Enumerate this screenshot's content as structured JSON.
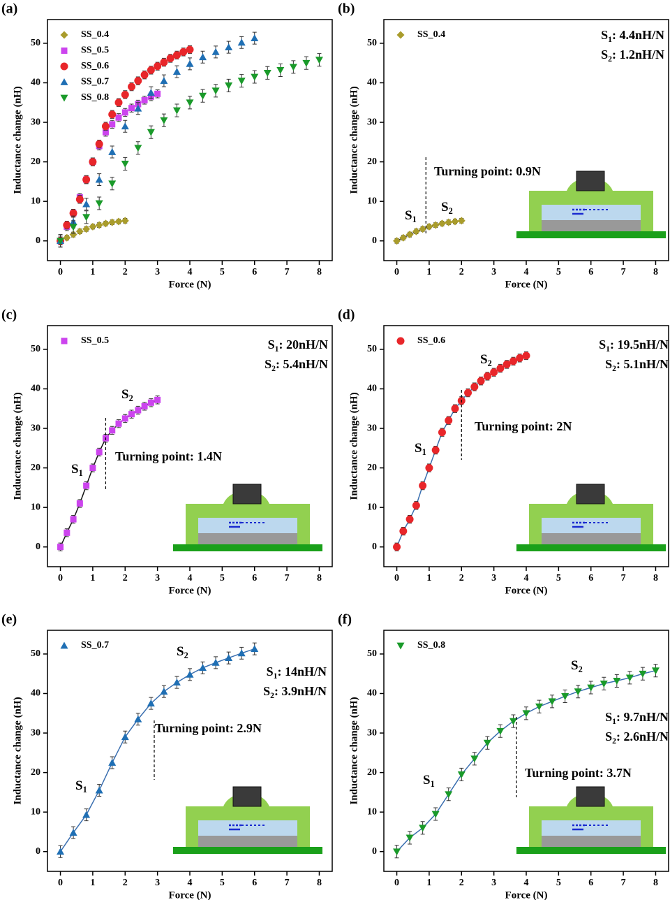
{
  "chart_data": [
    {
      "type": "scatter",
      "panel_label": "(a)",
      "xlabel": "Force (N)",
      "ylabel": "Inductance change (nH)",
      "xlim": [
        -0.4,
        8.4
      ],
      "ylim": [
        -5,
        56
      ],
      "xticks": [
        0,
        1,
        2,
        3,
        4,
        5,
        6,
        7,
        8
      ],
      "yticks": [
        0,
        10,
        20,
        30,
        40,
        50
      ],
      "series": [
        {
          "name": "SS_0.4",
          "marker": "diamond",
          "color": "#a99c2c",
          "error": 0.6,
          "x": [
            0,
            0.2,
            0.4,
            0.6,
            0.8,
            1,
            1.2,
            1.4,
            1.6,
            1.8,
            2
          ],
          "values": [
            0,
            0.8,
            1.6,
            2.4,
            3.0,
            3.6,
            4.0,
            4.4,
            4.7,
            4.9,
            5.1
          ]
        },
        {
          "name": "SS_0.5",
          "marker": "square",
          "color": "#cc44ee",
          "error": 1.0,
          "x": [
            0,
            0.2,
            0.4,
            0.6,
            0.8,
            1,
            1.2,
            1.4,
            1.6,
            1.8,
            2,
            2.2,
            2.4,
            2.6,
            2.8,
            3
          ],
          "values": [
            0,
            3.6,
            7.0,
            11,
            15.5,
            20,
            24,
            27.5,
            29.5,
            31.2,
            32.5,
            33.6,
            34.6,
            35.6,
            36.5,
            37.2
          ]
        },
        {
          "name": "SS_0.6",
          "marker": "circle",
          "color": "#e8262a",
          "error": 1.0,
          "x": [
            0,
            0.2,
            0.4,
            0.6,
            0.8,
            1,
            1.2,
            1.4,
            1.6,
            1.8,
            2,
            2.2,
            2.4,
            2.6,
            2.8,
            3,
            3.2,
            3.4,
            3.6,
            3.8,
            4
          ],
          "values": [
            0,
            4,
            7,
            10.5,
            15.5,
            20,
            24.5,
            29,
            32,
            35,
            37,
            39,
            40.5,
            42,
            43.2,
            44.2,
            45.2,
            46.2,
            47,
            47.8,
            48.4
          ]
        },
        {
          "name": "SS_0.7",
          "marker": "triangle-up",
          "color": "#1f6fb4",
          "error": 1.5,
          "x": [
            0,
            0.4,
            0.8,
            1.2,
            1.6,
            2,
            2.4,
            2.8,
            3.2,
            3.6,
            4,
            4.4,
            4.8,
            5.2,
            5.6,
            6
          ],
          "values": [
            0,
            4.8,
            9.3,
            15.5,
            22.5,
            29,
            33.5,
            37.5,
            40.5,
            42.8,
            44.8,
            46.5,
            47.8,
            49,
            50.2,
            51.3
          ]
        },
        {
          "name": "SS_0.8",
          "marker": "triangle-down",
          "color": "#1a9a2a",
          "error": 1.6,
          "x": [
            0,
            0.4,
            0.8,
            1.2,
            1.6,
            2,
            2.4,
            2.8,
            3.2,
            3.6,
            4,
            4.4,
            4.8,
            5.2,
            5.6,
            6,
            6.4,
            6.8,
            7.2,
            7.6,
            8
          ],
          "values": [
            0,
            3.5,
            6,
            9.5,
            14.5,
            19.5,
            23.5,
            27.5,
            30.5,
            33,
            35,
            36.7,
            38,
            39.3,
            40.5,
            41.5,
            42.5,
            43.2,
            44,
            45,
            45.8
          ]
        }
      ]
    },
    {
      "type": "scatter",
      "panel_label": "(b)",
      "xlabel": "Force (N)",
      "ylabel": "Inductance change (nH)",
      "xlim": [
        -0.4,
        8.4
      ],
      "ylim": [
        -5,
        56
      ],
      "xticks": [
        0,
        1,
        2,
        3,
        4,
        5,
        6,
        7,
        8
      ],
      "yticks": [
        0,
        10,
        20,
        30,
        40,
        50
      ],
      "series": [
        {
          "name": "SS_0.4",
          "marker": "diamond",
          "color": "#a99c2c",
          "error": 0.6,
          "x": [
            0,
            0.2,
            0.4,
            0.6,
            0.8,
            1,
            1.2,
            1.4,
            1.6,
            1.8,
            2
          ],
          "values": [
            0,
            0.8,
            1.6,
            2.4,
            3.0,
            3.6,
            4.0,
            4.4,
            4.7,
            4.9,
            5.1
          ]
        }
      ],
      "fit_line_color": "#333333",
      "slopes": [
        {
          "symbol": "S",
          "subscript": "1",
          "text": ": 4.4nH/N"
        },
        {
          "symbol": "S",
          "subscript": "2",
          "text": ": 1.2nH/N"
        }
      ],
      "segment_labels": [
        {
          "symbol": "S",
          "subscript": "1"
        },
        {
          "symbol": "S",
          "subscript": "2"
        }
      ],
      "turning_point": {
        "x": 0.9,
        "label": "Turning point: 0.9N"
      },
      "inset": true
    },
    {
      "type": "scatter",
      "panel_label": "(c)",
      "xlabel": "Force (N)",
      "ylabel": "Inductance change (nH)",
      "xlim": [
        -0.4,
        8.4
      ],
      "ylim": [
        -5,
        56
      ],
      "xticks": [
        0,
        1,
        2,
        3,
        4,
        5,
        6,
        7,
        8
      ],
      "yticks": [
        0,
        10,
        20,
        30,
        40,
        50
      ],
      "series": [
        {
          "name": "SS_0.5",
          "marker": "square",
          "color": "#cc44ee",
          "error": 1.0,
          "x": [
            0,
            0.2,
            0.4,
            0.6,
            0.8,
            1,
            1.2,
            1.4,
            1.6,
            1.8,
            2,
            2.2,
            2.4,
            2.6,
            2.8,
            3
          ],
          "values": [
            0,
            3.6,
            7.0,
            11,
            15.5,
            20,
            24,
            27.5,
            29.5,
            31.2,
            32.5,
            33.6,
            34.6,
            35.6,
            36.5,
            37.2
          ]
        }
      ],
      "fit_line_color": "#111111",
      "slopes": [
        {
          "symbol": "S",
          "subscript": "1",
          "text": ": 20nH/N"
        },
        {
          "symbol": "S",
          "subscript": "2",
          "text": ": 5.4nH/N"
        }
      ],
      "segment_labels": [
        {
          "symbol": "S",
          "subscript": "1"
        },
        {
          "symbol": "S",
          "subscript": "2"
        }
      ],
      "turning_point": {
        "x": 1.4,
        "label": "Turning point: 1.4N"
      },
      "inset": true
    },
    {
      "type": "scatter",
      "panel_label": "(d)",
      "xlabel": "Force (N)",
      "ylabel": "Inductance change (nH)",
      "xlim": [
        -0.4,
        8.4
      ],
      "ylim": [
        -5,
        56
      ],
      "xticks": [
        0,
        1,
        2,
        3,
        4,
        5,
        6,
        7,
        8
      ],
      "yticks": [
        0,
        10,
        20,
        30,
        40,
        50
      ],
      "series": [
        {
          "name": "SS_0.6",
          "marker": "circle",
          "color": "#e8262a",
          "error": 1.0,
          "x": [
            0,
            0.2,
            0.4,
            0.6,
            0.8,
            1,
            1.2,
            1.4,
            1.6,
            1.8,
            2,
            2.2,
            2.4,
            2.6,
            2.8,
            3,
            3.2,
            3.4,
            3.6,
            3.8,
            4
          ],
          "values": [
            0,
            4,
            7,
            10.5,
            15.5,
            20,
            24.5,
            29,
            32,
            35,
            37,
            39,
            40.5,
            42,
            43.2,
            44.2,
            45.2,
            46.2,
            47,
            47.8,
            48.4
          ]
        }
      ],
      "fit_line_color": "#3a6fb0",
      "slopes": [
        {
          "symbol": "S",
          "subscript": "1",
          "text": ": 19.5nH/N"
        },
        {
          "symbol": "S",
          "subscript": "2",
          "text": ": 5.1nH/N"
        }
      ],
      "segment_labels": [
        {
          "symbol": "S",
          "subscript": "1"
        },
        {
          "symbol": "S",
          "subscript": "2"
        }
      ],
      "turning_point": {
        "x": 2,
        "label": "Turning point: 2N"
      },
      "inset": true
    },
    {
      "type": "scatter",
      "panel_label": "(e)",
      "xlabel": "Force (N)",
      "ylabel": "Inductance change (nH)",
      "xlim": [
        -0.4,
        8.4
      ],
      "ylim": [
        -5,
        56
      ],
      "xticks": [
        0,
        1,
        2,
        3,
        4,
        5,
        6,
        7,
        8
      ],
      "yticks": [
        0,
        10,
        20,
        30,
        40,
        50
      ],
      "series": [
        {
          "name": "SS_0.7",
          "marker": "triangle-up",
          "color": "#1f6fb4",
          "error": 1.5,
          "x": [
            0,
            0.4,
            0.8,
            1.2,
            1.6,
            2,
            2.4,
            2.8,
            3.2,
            3.6,
            4,
            4.4,
            4.8,
            5.2,
            5.6,
            6
          ],
          "values": [
            0,
            4.8,
            9.3,
            15.5,
            22.5,
            29,
            33.5,
            37.5,
            40.5,
            42.8,
            44.8,
            46.5,
            47.8,
            49,
            50.2,
            51.3
          ]
        }
      ],
      "fit_line_color": "#3a6fb0",
      "slopes": [
        {
          "symbol": "S",
          "subscript": "1",
          "text": ": 14nH/N"
        },
        {
          "symbol": "S",
          "subscript": "2",
          "text": ": 3.9nH/N"
        }
      ],
      "segment_labels": [
        {
          "symbol": "S",
          "subscript": "1"
        },
        {
          "symbol": "S",
          "subscript": "2"
        }
      ],
      "turning_point": {
        "x": 2.9,
        "label": "Turning point: 2.9N"
      },
      "inset": true
    },
    {
      "type": "scatter",
      "panel_label": "(f)",
      "xlabel": "Force (N)",
      "ylabel": "Inductance change (nH)",
      "xlim": [
        -0.4,
        8.4
      ],
      "ylim": [
        -5,
        56
      ],
      "xticks": [
        0,
        1,
        2,
        3,
        4,
        5,
        6,
        7,
        8
      ],
      "yticks": [
        0,
        10,
        20,
        30,
        40,
        50
      ],
      "series": [
        {
          "name": "SS_0.8",
          "marker": "triangle-down",
          "color": "#1a9a2a",
          "error": 1.6,
          "x": [
            0,
            0.4,
            0.8,
            1.2,
            1.6,
            2,
            2.4,
            2.8,
            3.2,
            3.6,
            4,
            4.4,
            4.8,
            5.2,
            5.6,
            6,
            6.4,
            6.8,
            7.2,
            7.6,
            8
          ],
          "values": [
            0,
            3.5,
            6,
            9.5,
            14.5,
            19.5,
            23.5,
            27.5,
            30.5,
            33,
            35,
            36.7,
            38,
            39.3,
            40.5,
            41.5,
            42.5,
            43.2,
            44,
            45,
            45.8
          ]
        }
      ],
      "fit_line_color": "#3a6fb0",
      "slopes": [
        {
          "symbol": "S",
          "subscript": "1",
          "text": ": 9.7nH/N"
        },
        {
          "symbol": "S",
          "subscript": "2",
          "text": ": 2.6nH/N"
        }
      ],
      "segment_labels": [
        {
          "symbol": "S",
          "subscript": "1"
        },
        {
          "symbol": "S",
          "subscript": "2"
        }
      ],
      "turning_point": {
        "x": 3.7,
        "label": "Turning point: 3.7N"
      },
      "inset": true
    }
  ]
}
